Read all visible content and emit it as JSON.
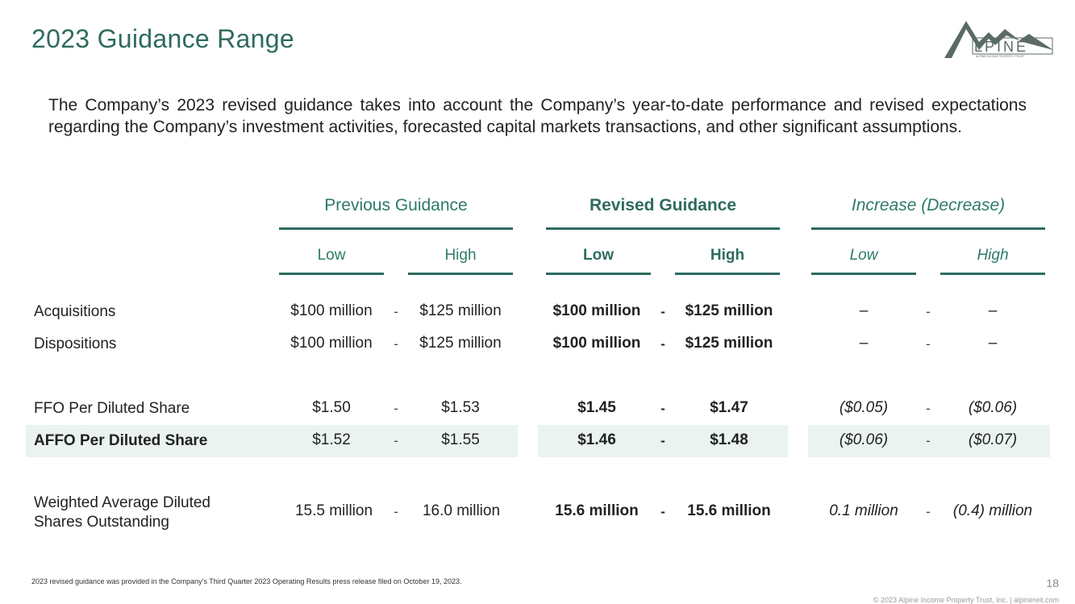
{
  "header": {
    "title": "2023 Guidance Range",
    "logo_text": "LPINE",
    "logo_tagline": "ALPINE INCOME PROPERTY TRUST"
  },
  "intro": "The Company’s 2023 revised guidance takes into account the Company’s year-to-date performance and revised expectations regarding the Company’s investment activities, forecasted capital markets transactions, and other significant assumptions.",
  "table": {
    "groups": [
      "Previous Guidance",
      "Revised Guidance",
      "Increase (Decrease)"
    ],
    "subheaders": [
      "Low",
      "High",
      "Low",
      "High",
      "Low",
      "High"
    ],
    "separator": "-",
    "rows": [
      {
        "label": "Acquisitions",
        "values": [
          "$100 million",
          "$125 million",
          "$100 million",
          "$125 million",
          "–",
          "–"
        ]
      },
      {
        "label": "Dispositions",
        "values": [
          "$100 million",
          "$125 million",
          "$100 million",
          "$125 million",
          "–",
          "–"
        ]
      },
      {
        "label": "FFO Per Diluted Share",
        "values": [
          "$1.50",
          "$1.53",
          "$1.45",
          "$1.47",
          "($0.05)",
          "($0.06)"
        ]
      },
      {
        "label": "AFFO Per Diluted Share",
        "values": [
          "$1.52",
          "$1.55",
          "$1.46",
          "$1.48",
          "($0.06)",
          "($0.07)"
        ]
      },
      {
        "label_line1": "Weighted Average Diluted",
        "label_line2": "Shares Outstanding",
        "values": [
          "15.5 million",
          "16.0 million",
          "15.6 million",
          "15.6 million",
          "0.1 million",
          "(0.4) million"
        ]
      }
    ]
  },
  "footer": {
    "footnote": "2023 revised guidance was provided in the Company’s Third Quarter 2023 Operating Results press release filed on October 19, 2023.",
    "page_number": "18",
    "copyright": "© 2023 Alpine Income Property Trust, Inc.  |  alpinereit.com"
  },
  "colors": {
    "accent": "#2e6b5f",
    "highlight": "#eaf3ef"
  }
}
